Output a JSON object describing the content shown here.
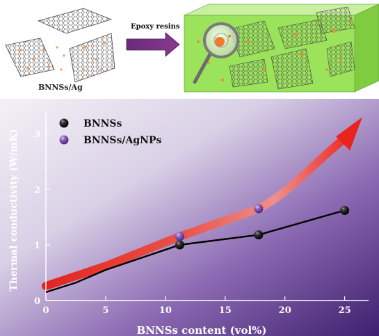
{
  "schematic": {
    "label_left": "BNNSs/Ag",
    "arrow_label": "Epoxy resins"
  },
  "colors": {
    "background_light": "#e8e4f0",
    "background_dark": "#3e1f6e",
    "bnnss_line": "#000000",
    "agnps_trend": "#e0201c",
    "composite_box": "#9be35a"
  },
  "chart_data": {
    "type": "line",
    "xlabel": "BNNSs content (vol%)",
    "ylabel": "Thermal conductivity (W/mK)",
    "xlim": [
      0,
      27
    ],
    "ylim": [
      0,
      3.3
    ],
    "xticks": [
      "0",
      "5",
      "10",
      "15",
      "20",
      "25"
    ],
    "yticks": [
      "0",
      "1",
      "2",
      "3"
    ],
    "legend_position": "top-left",
    "series": [
      {
        "name": "BNNSs",
        "marker": "black-sphere",
        "x": [
          0,
          2.5,
          5,
          11.2,
          17.8,
          25
        ],
        "y": [
          0.15,
          0.32,
          0.55,
          1.0,
          1.18,
          1.62
        ],
        "marker_x": [
          11.2,
          17.8,
          25
        ],
        "marker_y": [
          1.0,
          1.18,
          1.62
        ]
      },
      {
        "name": "BNNSs/AgNPs",
        "marker": "purple-sphere",
        "x": [
          0,
          5,
          11.2,
          17.8
        ],
        "y": [
          0.26,
          0.62,
          1.15,
          1.65
        ],
        "marker_x": [
          11.2,
          17.8
        ],
        "marker_y": [
          1.15,
          1.65
        ]
      }
    ]
  }
}
